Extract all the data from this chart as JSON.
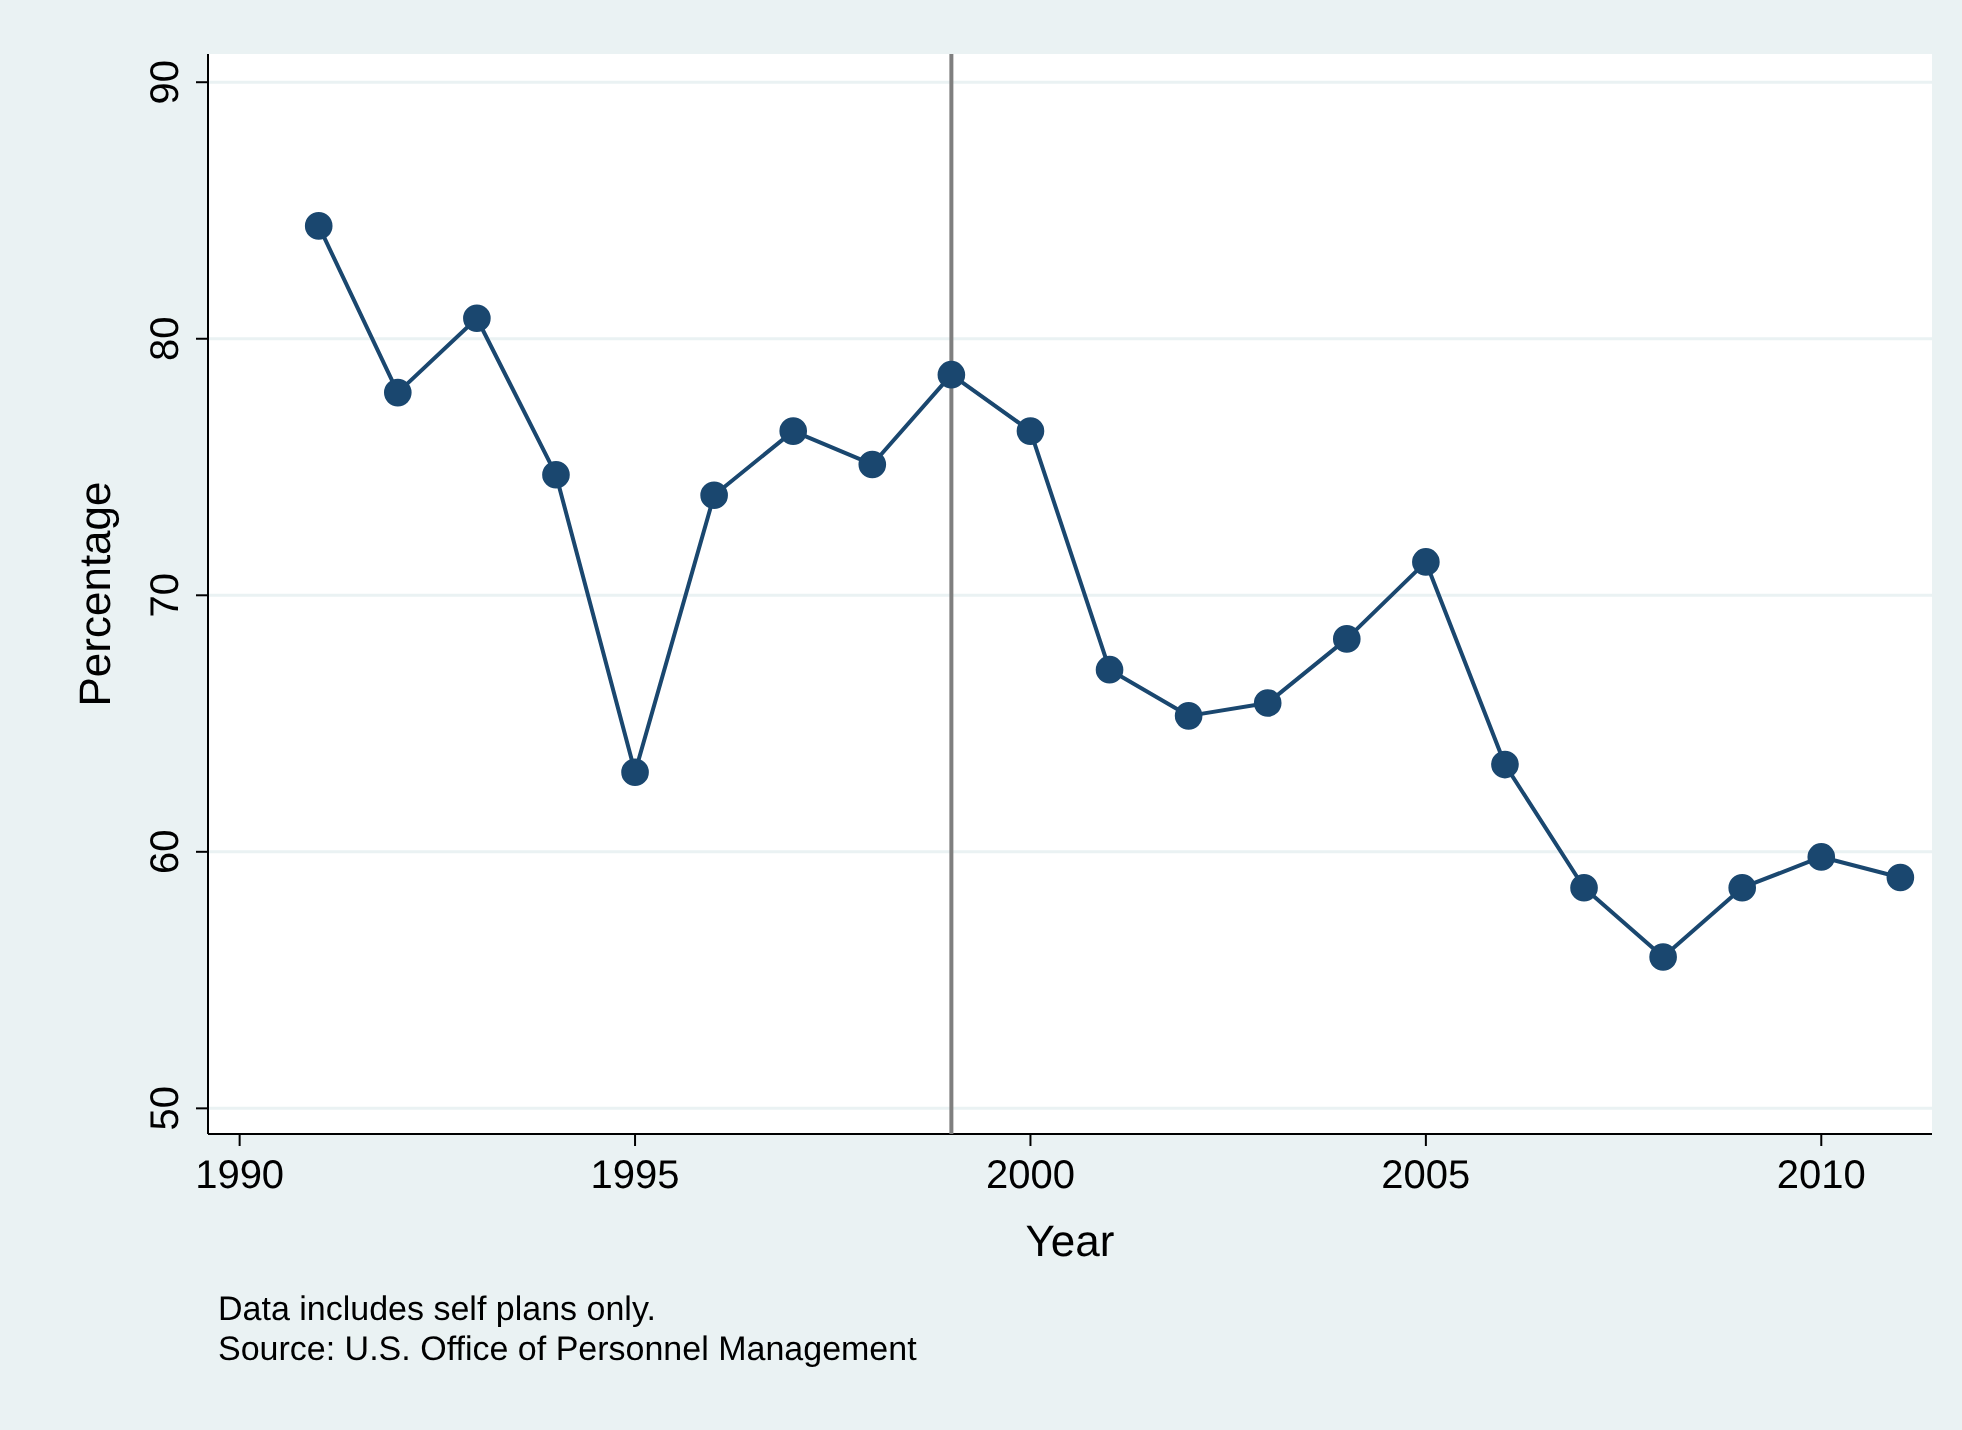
{
  "chart_data": {
    "type": "line",
    "xlabel": "Year",
    "ylabel": "Percentage",
    "x": [
      1991,
      1992,
      1993,
      1994,
      1995,
      1996,
      1997,
      1998,
      1999,
      2000,
      2001,
      2002,
      2003,
      2004,
      2005,
      2006,
      2007,
      2008,
      2009,
      2010,
      2011
    ],
    "series": [
      {
        "color": "#1a476f",
        "values": [
          84.4,
          77.9,
          80.8,
          74.7,
          63.1,
          73.9,
          76.4,
          75.1,
          78.6,
          76.4,
          67.1,
          65.3,
          65.8,
          68.3,
          71.3,
          63.4,
          58.6,
          55.9,
          58.6,
          59.8,
          59.0
        ]
      }
    ],
    "xlim": [
      1989.6,
      2011.4
    ],
    "xticks": [
      1990,
      1995,
      2000,
      2005,
      2010
    ],
    "ylim": [
      49,
      91.1
    ],
    "yticks": [
      50,
      60,
      70,
      80,
      90
    ],
    "grid": "y",
    "marker": "circle",
    "line_style": "solid",
    "ref_lines": [
      {
        "axis": "x",
        "value": 1999,
        "color": "#7f7f7f"
      }
    ],
    "annotations": [
      "Data includes self plans only.",
      "Source: U.S. Office of Personnel Management"
    ]
  }
}
